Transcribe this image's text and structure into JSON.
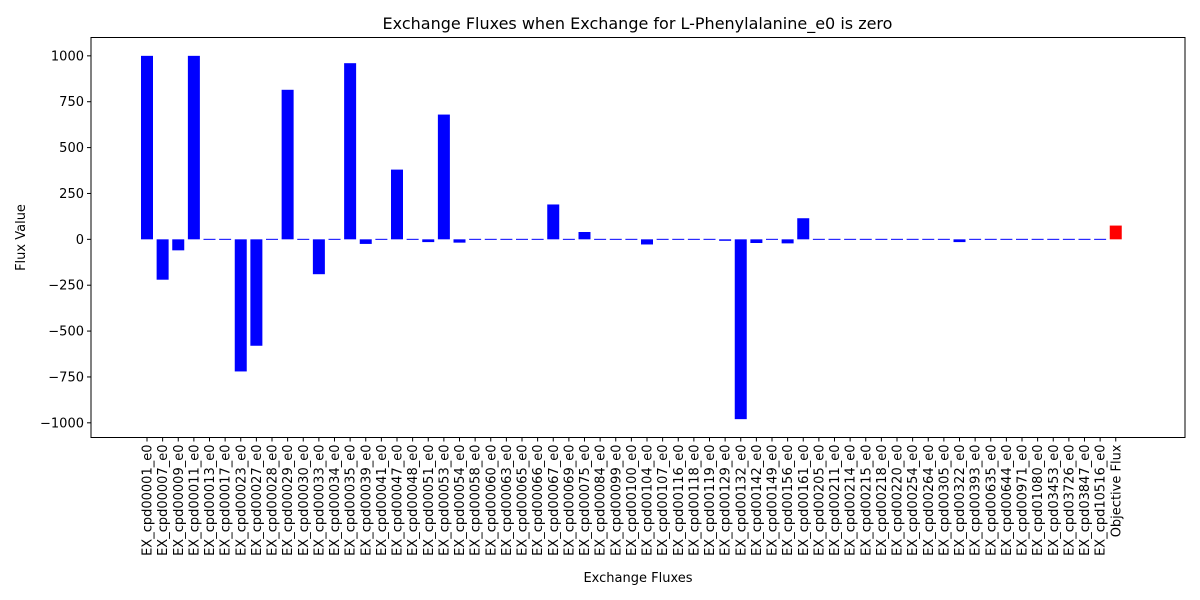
{
  "chart_data": {
    "type": "bar",
    "title": "Exchange Fluxes when Exchange for L-Phenylalanine_e0 is zero",
    "xlabel": "Exchange Fluxes",
    "ylabel": "Flux Value",
    "ylim": [
      -1080,
      1100
    ],
    "yticks": [
      1000,
      750,
      500,
      250,
      0,
      -250,
      -500,
      -750,
      -1000
    ],
    "ytick_labels": [
      "1000",
      "750",
      "500",
      "250",
      "0",
      "−250",
      "−500",
      "−750",
      "−1000"
    ],
    "grid": false,
    "legend": "none",
    "categories": [
      "EX_cpd00001_e0",
      "EX_cpd00007_e0",
      "EX_cpd00009_e0",
      "EX_cpd00011_e0",
      "EX_cpd00013_e0",
      "EX_cpd00017_e0",
      "EX_cpd00023_e0",
      "EX_cpd00027_e0",
      "EX_cpd00028_e0",
      "EX_cpd00029_e0",
      "EX_cpd00030_e0",
      "EX_cpd00033_e0",
      "EX_cpd00034_e0",
      "EX_cpd00035_e0",
      "EX_cpd00039_e0",
      "EX_cpd00041_e0",
      "EX_cpd00047_e0",
      "EX_cpd00048_e0",
      "EX_cpd00051_e0",
      "EX_cpd00053_e0",
      "EX_cpd00054_e0",
      "EX_cpd00058_e0",
      "EX_cpd00060_e0",
      "EX_cpd00063_e0",
      "EX_cpd00065_e0",
      "EX_cpd00066_e0",
      "EX_cpd00067_e0",
      "EX_cpd00069_e0",
      "EX_cpd00075_e0",
      "EX_cpd00084_e0",
      "EX_cpd00099_e0",
      "EX_cpd00100_e0",
      "EX_cpd00104_e0",
      "EX_cpd00107_e0",
      "EX_cpd00116_e0",
      "EX_cpd00118_e0",
      "EX_cpd00119_e0",
      "EX_cpd00129_e0",
      "EX_cpd00132_e0",
      "EX_cpd00142_e0",
      "EX_cpd00149_e0",
      "EX_cpd00156_e0",
      "EX_cpd00161_e0",
      "EX_cpd00205_e0",
      "EX_cpd00211_e0",
      "EX_cpd00214_e0",
      "EX_cpd00215_e0",
      "EX_cpd00218_e0",
      "EX_cpd00220_e0",
      "EX_cpd00254_e0",
      "EX_cpd00264_e0",
      "EX_cpd00305_e0",
      "EX_cpd00322_e0",
      "EX_cpd00393_e0",
      "EX_cpd00635_e0",
      "EX_cpd00644_e0",
      "EX_cpd00971_e0",
      "EX_cpd01080_e0",
      "EX_cpd03453_e0",
      "EX_cpd03726_e0",
      "EX_cpd03847_e0",
      "EX_cpd10516_e0",
      "Objective Flux"
    ],
    "values": [
      1000,
      -220,
      -60,
      1000,
      0,
      0,
      -720,
      -580,
      0,
      815,
      0,
      -190,
      0,
      960,
      -25,
      0,
      380,
      0,
      -15,
      680,
      -18,
      0,
      -5,
      0,
      0,
      0,
      190,
      -5,
      40,
      -4,
      0,
      4,
      -28,
      0,
      0,
      0,
      -4,
      -8,
      -980,
      -20,
      0,
      -22,
      115,
      0,
      0,
      0,
      0,
      0,
      0,
      0,
      0,
      0,
      -15,
      4,
      0,
      0,
      0,
      -4,
      0,
      0,
      -4,
      0,
      75
    ],
    "colors": {
      "default": "#0000ff",
      "highlight": "#ff0000"
    },
    "highlight_index": 62
  }
}
